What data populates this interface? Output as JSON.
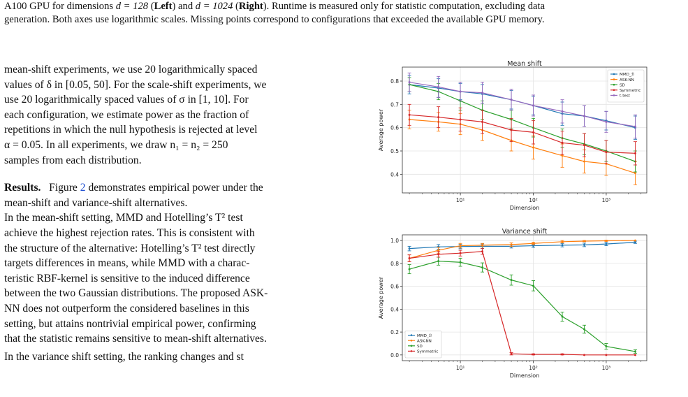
{
  "caption": {
    "line1_pre": "A100 GPU for dimensions ",
    "line1_d1": "d = 128",
    "line1_left_label": "Left",
    "line1_and": " (",
    "line1_mid": ") and ",
    "line1_d2": "d = 1024",
    "line1_right_label": "Right",
    "line1_post": "). Runtime is measured only for statistic computation, excluding data",
    "line2": "generation. Both axes use logarithmic scales. Missing points correspond to configurations that exceeded the available GPU memory."
  },
  "body": {
    "para1_lines": [
      "mean-shift experiments, we use 20 logarithmically spaced",
      "values of δ in [0.05, 50]. For the scale-shift experiments, we",
      "use 20 logarithmically spaced values of σ in [1, 10]. For",
      "each configuration, we estimate power as the fraction of",
      "repetitions in which the null hypothesis is rejected at level",
      "α = 0.05. In all experiments, we draw n₁ = n₂ = 250",
      "samples from each distribution."
    ],
    "results_head": "Results.",
    "results_text_pre": "Figure ",
    "results_ref": "2",
    "results_text_post": " demonstrates empirical power under the",
    "para2_line2": "mean-shift and variance-shift alternatives.",
    "para3_lines": [
      "In the mean-shift setting, MMD and Hotelling’s T² test",
      "achieve the highest rejection rates. This is consistent with",
      "the structure of the alternative: Hotelling’s T² test directly",
      "targets differences in means, while MMD with a charac-",
      "teristic RBF-kernel is sensitive to the induced difference",
      "between the two Gaussian distributions. The proposed ASK-",
      "NN does not outperform the considered baselines in this",
      "setting, but attains nontrivial empirical power, confirming",
      "that the statistic remains sensitive to mean-shift alternatives."
    ],
    "para4_partial": "In the variance shift setting, the ranking changes and st"
  },
  "chart_data": [
    {
      "type": "line",
      "title": "Mean shift",
      "xlabel": "Dimension",
      "ylabel": "Average power",
      "xscale": "log",
      "xlim": [
        1.6,
        3600
      ],
      "ylim": [
        0.32,
        0.86
      ],
      "xticks": [
        10,
        100,
        1000
      ],
      "xtick_labels": [
        "10¹",
        "10²",
        "10³"
      ],
      "yticks": [
        0.4,
        0.5,
        0.6,
        0.7,
        0.8
      ],
      "ytick_labels": [
        "0.4",
        "0.5",
        "0.6",
        "0.7",
        "0.8"
      ],
      "grid": true,
      "legend_position": "top-right",
      "x": [
        2,
        5,
        10,
        20,
        50,
        100,
        250,
        500,
        1000,
        2500
      ],
      "series": [
        {
          "name": "MMD_ℬ",
          "color": "#1f77b4",
          "values": [
            0.785,
            0.77,
            0.755,
            0.745,
            0.72,
            0.695,
            0.66,
            0.65,
            0.63,
            0.6
          ],
          "err": [
            0.04,
            0.04,
            0.035,
            0.04,
            0.04,
            0.04,
            0.05,
            0.045,
            0.04,
            0.05
          ]
        },
        {
          "name": "ASK-NN",
          "color": "#ff7f0e",
          "values": [
            0.635,
            0.625,
            0.615,
            0.59,
            0.545,
            0.515,
            0.48,
            0.455,
            0.445,
            0.405
          ],
          "err": [
            0.04,
            0.04,
            0.045,
            0.045,
            0.045,
            0.05,
            0.05,
            0.05,
            0.05,
            0.05
          ]
        },
        {
          "name": "SD",
          "color": "#2ca02c",
          "values": [
            0.785,
            0.755,
            0.715,
            0.675,
            0.635,
            0.6,
            0.555,
            0.53,
            0.5,
            0.455
          ],
          "err": [
            0.03,
            0.035,
            0.04,
            0.04,
            0.04,
            0.04,
            0.04,
            0.045,
            0.045,
            0.045
          ]
        },
        {
          "name": "Symmetric",
          "color": "#d62728",
          "values": [
            0.655,
            0.645,
            0.635,
            0.625,
            0.59,
            0.58,
            0.535,
            0.525,
            0.495,
            0.49
          ],
          "err": [
            0.045,
            0.045,
            0.05,
            0.05,
            0.05,
            0.05,
            0.05,
            0.05,
            0.05,
            0.05
          ]
        },
        {
          "name": "t-test",
          "color": "#9467bd",
          "values": [
            0.795,
            0.775,
            0.755,
            0.75,
            0.72,
            0.695,
            0.67,
            0.65,
            0.625,
            0.605
          ],
          "err": [
            0.04,
            0.045,
            0.04,
            0.045,
            0.045,
            0.045,
            0.05,
            0.045,
            0.045,
            0.05
          ]
        }
      ]
    },
    {
      "type": "line",
      "title": "Variance shift",
      "xlabel": "Dimension",
      "ylabel": "Average power",
      "xscale": "log",
      "xlim": [
        1.6,
        3600
      ],
      "ylim": [
        -0.05,
        1.05
      ],
      "xticks": [
        10,
        100,
        1000
      ],
      "xtick_labels": [
        "10¹",
        "10²",
        "10³"
      ],
      "yticks": [
        0.0,
        0.2,
        0.4,
        0.6,
        0.8,
        1.0
      ],
      "ytick_labels": [
        "0.0",
        "0.2",
        "0.4",
        "0.6",
        "0.8",
        "1.0"
      ],
      "grid": true,
      "legend_position": "bottom-left",
      "x": [
        2,
        5,
        10,
        20,
        50,
        100,
        250,
        500,
        1000,
        2500
      ],
      "series": [
        {
          "name": "MMD_ℬ",
          "color": "#1f77b4",
          "values": [
            0.93,
            0.945,
            0.948,
            0.95,
            0.95,
            0.955,
            0.96,
            0.962,
            0.97,
            0.985
          ],
          "err": [
            0.02,
            0.02,
            0.02,
            0.02,
            0.015,
            0.015,
            0.015,
            0.015,
            0.015,
            0.01
          ]
        },
        {
          "name": "ASK-NN",
          "color": "#ff7f0e",
          "values": [
            0.845,
            0.915,
            0.955,
            0.96,
            0.965,
            0.975,
            0.99,
            0.995,
            0.998,
            1.0
          ],
          "err": [
            0.03,
            0.025,
            0.02,
            0.015,
            0.015,
            0.01,
            0.01,
            0.005,
            0.005,
            0.0
          ]
        },
        {
          "name": "SD",
          "color": "#2ca02c",
          "values": [
            0.75,
            0.82,
            0.81,
            0.765,
            0.655,
            0.605,
            0.335,
            0.225,
            0.075,
            0.03
          ],
          "err": [
            0.04,
            0.035,
            0.035,
            0.04,
            0.045,
            0.045,
            0.04,
            0.035,
            0.025,
            0.015
          ]
        },
        {
          "name": "Symmetric",
          "color": "#d62728",
          "values": [
            0.845,
            0.88,
            0.89,
            0.905,
            0.01,
            0.005,
            0.005,
            0.0,
            0.0,
            0.0
          ],
          "err": [
            0.03,
            0.025,
            0.025,
            0.025,
            0.01,
            0.005,
            0.005,
            0.0,
            0.0,
            0.0
          ]
        }
      ]
    }
  ]
}
